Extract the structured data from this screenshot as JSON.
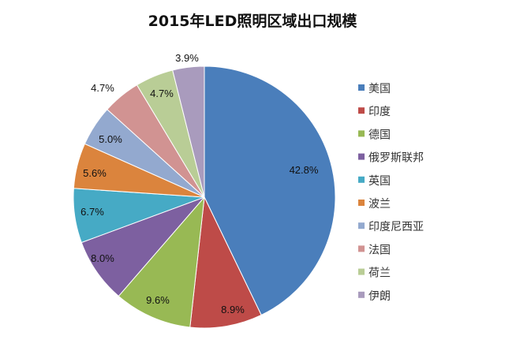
{
  "chart_data": {
    "type": "pie",
    "title": "2015年LED照明区域出口规模",
    "categories": [
      "美国",
      "印度",
      "德国",
      "俄罗斯联邦",
      "英国",
      "波兰",
      "印度尼西亚",
      "法国",
      "荷兰",
      "伊朗"
    ],
    "values": [
      42.8,
      8.9,
      9.6,
      8.0,
      6.7,
      5.6,
      5.0,
      4.7,
      4.7,
      3.9
    ],
    "data_labels": [
      "42.8%",
      "8.9%",
      "9.6%",
      "8.0%",
      "6.7%",
      "5.6%",
      "5.0%",
      "4.7%",
      "4.7%",
      "3.9%"
    ],
    "colors": [
      "#4A7EBB",
      "#BE4B48",
      "#98B954",
      "#7D60A0",
      "#46AAC5",
      "#DB843D",
      "#93A9CF",
      "#D19392",
      "#B9CD96",
      "#A99BBD"
    ],
    "start_angle": "top, clockwise",
    "legend_position": "right"
  }
}
